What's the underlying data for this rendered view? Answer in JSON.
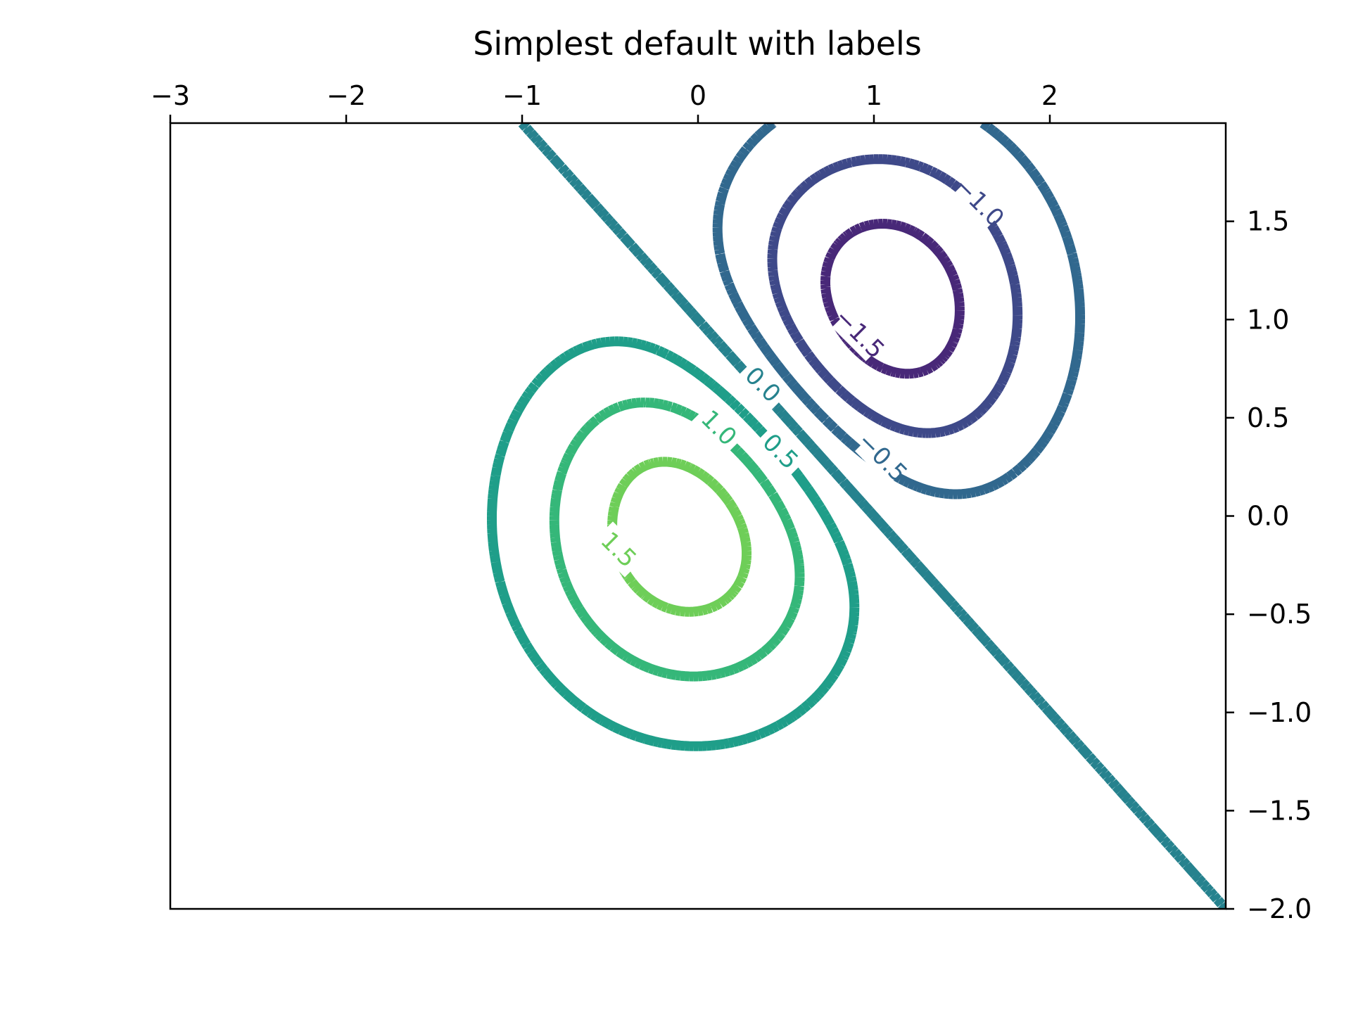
{
  "chart_data": {
    "type": "contour",
    "title": "Simplest default with labels",
    "xlabel": "",
    "ylabel": "",
    "xlim": [
      -3,
      3
    ],
    "ylim": [
      -2,
      2
    ],
    "x_axis_position": "top",
    "y_axis_position": "right",
    "grid": false,
    "colormap": "viridis",
    "line_width_style": "thick",
    "x_ticks": [
      {
        "value": -3,
        "label": "−3"
      },
      {
        "value": -2,
        "label": "−2"
      },
      {
        "value": -1,
        "label": "−1"
      },
      {
        "value": 0,
        "label": "0"
      },
      {
        "value": 1,
        "label": "1"
      },
      {
        "value": 2,
        "label": "2"
      }
    ],
    "y_ticks": [
      {
        "value": 1.5,
        "label": "1.5"
      },
      {
        "value": 1.0,
        "label": "1.0"
      },
      {
        "value": 0.5,
        "label": "0.5"
      },
      {
        "value": 0.0,
        "label": "0.0"
      },
      {
        "value": -0.5,
        "label": "−0.5"
      },
      {
        "value": -1.0,
        "label": "−1.0"
      },
      {
        "value": -1.5,
        "label": "−1.5"
      },
      {
        "value": -2.0,
        "label": "−2.0"
      }
    ],
    "levels": [
      {
        "value": -1.5,
        "label": "−1.5",
        "color": "#482878",
        "label_at": [
          0.92,
          0.93
        ]
      },
      {
        "value": -1.0,
        "label": "−1.0",
        "color": "#3e4989",
        "label_at": [
          1.6,
          1.6
        ]
      },
      {
        "value": -0.5,
        "label": "−0.5",
        "color": "#31688e",
        "label_at": [
          1.05,
          0.3
        ]
      },
      {
        "value": 0.0,
        "label": "0.0",
        "color": "#26828e",
        "label_at": [
          0.37,
          0.67
        ]
      },
      {
        "value": 0.5,
        "label": "0.5",
        "color": "#1f9e89",
        "label_at": [
          0.47,
          0.33
        ]
      },
      {
        "value": 1.0,
        "label": "1.0",
        "color": "#35b779",
        "label_at": [
          0.12,
          0.45
        ]
      },
      {
        "value": 1.5,
        "label": "1.5",
        "color": "#6ece58",
        "label_at": [
          -0.45,
          -0.17
        ]
      }
    ]
  }
}
